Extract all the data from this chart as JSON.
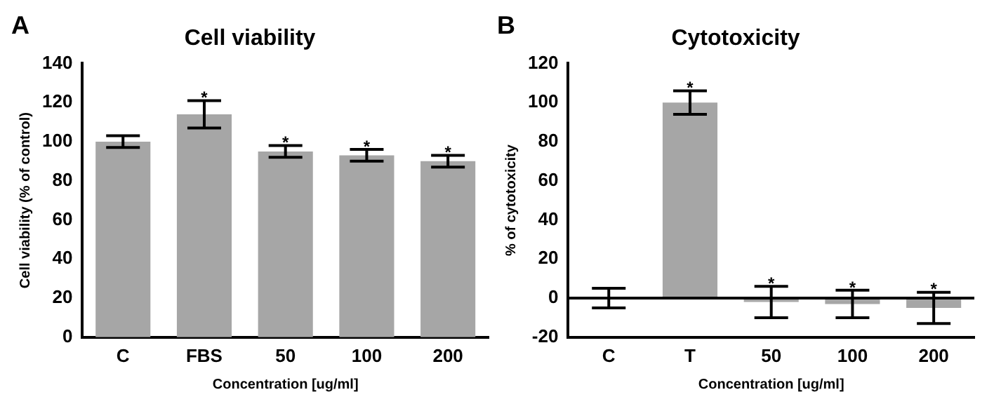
{
  "chart_data": [
    {
      "type": "bar",
      "title": "Cell viability",
      "xlabel": "Concentration [ug/ml]",
      "ylabel": "Cell viability (% of control)",
      "categories": [
        "C",
        "FBS",
        "50",
        "100",
        "200"
      ],
      "values": [
        100,
        114,
        95,
        93,
        90
      ],
      "errors": [
        3,
        7,
        3,
        3,
        3
      ],
      "color": "#a6a6a6",
      "ylim": [
        0,
        140
      ],
      "yticks": [
        0,
        20,
        40,
        60,
        80,
        100,
        120,
        140
      ],
      "grid": false,
      "annotations": [
        "A",
        {
          "text": "*",
          "x": "FBS",
          "y": 122
        },
        {
          "text": "*",
          "x": "50",
          "y": 99
        },
        {
          "text": "*",
          "x": "100",
          "y": 97
        },
        {
          "text": "*",
          "x": "200",
          "y": 94
        }
      ]
    },
    {
      "type": "bar",
      "title": "Cytotoxicity",
      "xlabel": "Concentration [ug/ml]",
      "ylabel": "% of cytotoxicity",
      "categories": [
        "C",
        "T",
        "50",
        "100",
        "200"
      ],
      "values": [
        0,
        100,
        -2,
        -3,
        -5
      ],
      "errors": [
        5,
        6,
        8,
        7,
        8
      ],
      "color": "#a6a6a6",
      "ylim": [
        -20,
        120
      ],
      "yticks": [
        -20,
        0,
        20,
        40,
        60,
        80,
        100,
        120
      ],
      "grid": false,
      "ref_lines": [
        {
          "axis": "y",
          "value": 0,
          "color": "#000000"
        }
      ],
      "annotations": [
        "B",
        {
          "text": "*",
          "x": "T",
          "y": 107
        },
        {
          "text": "*",
          "x": "50",
          "y": 7
        },
        {
          "text": "*",
          "x": "100",
          "y": 5
        },
        {
          "text": "*",
          "x": "200",
          "y": 4
        }
      ]
    }
  ]
}
